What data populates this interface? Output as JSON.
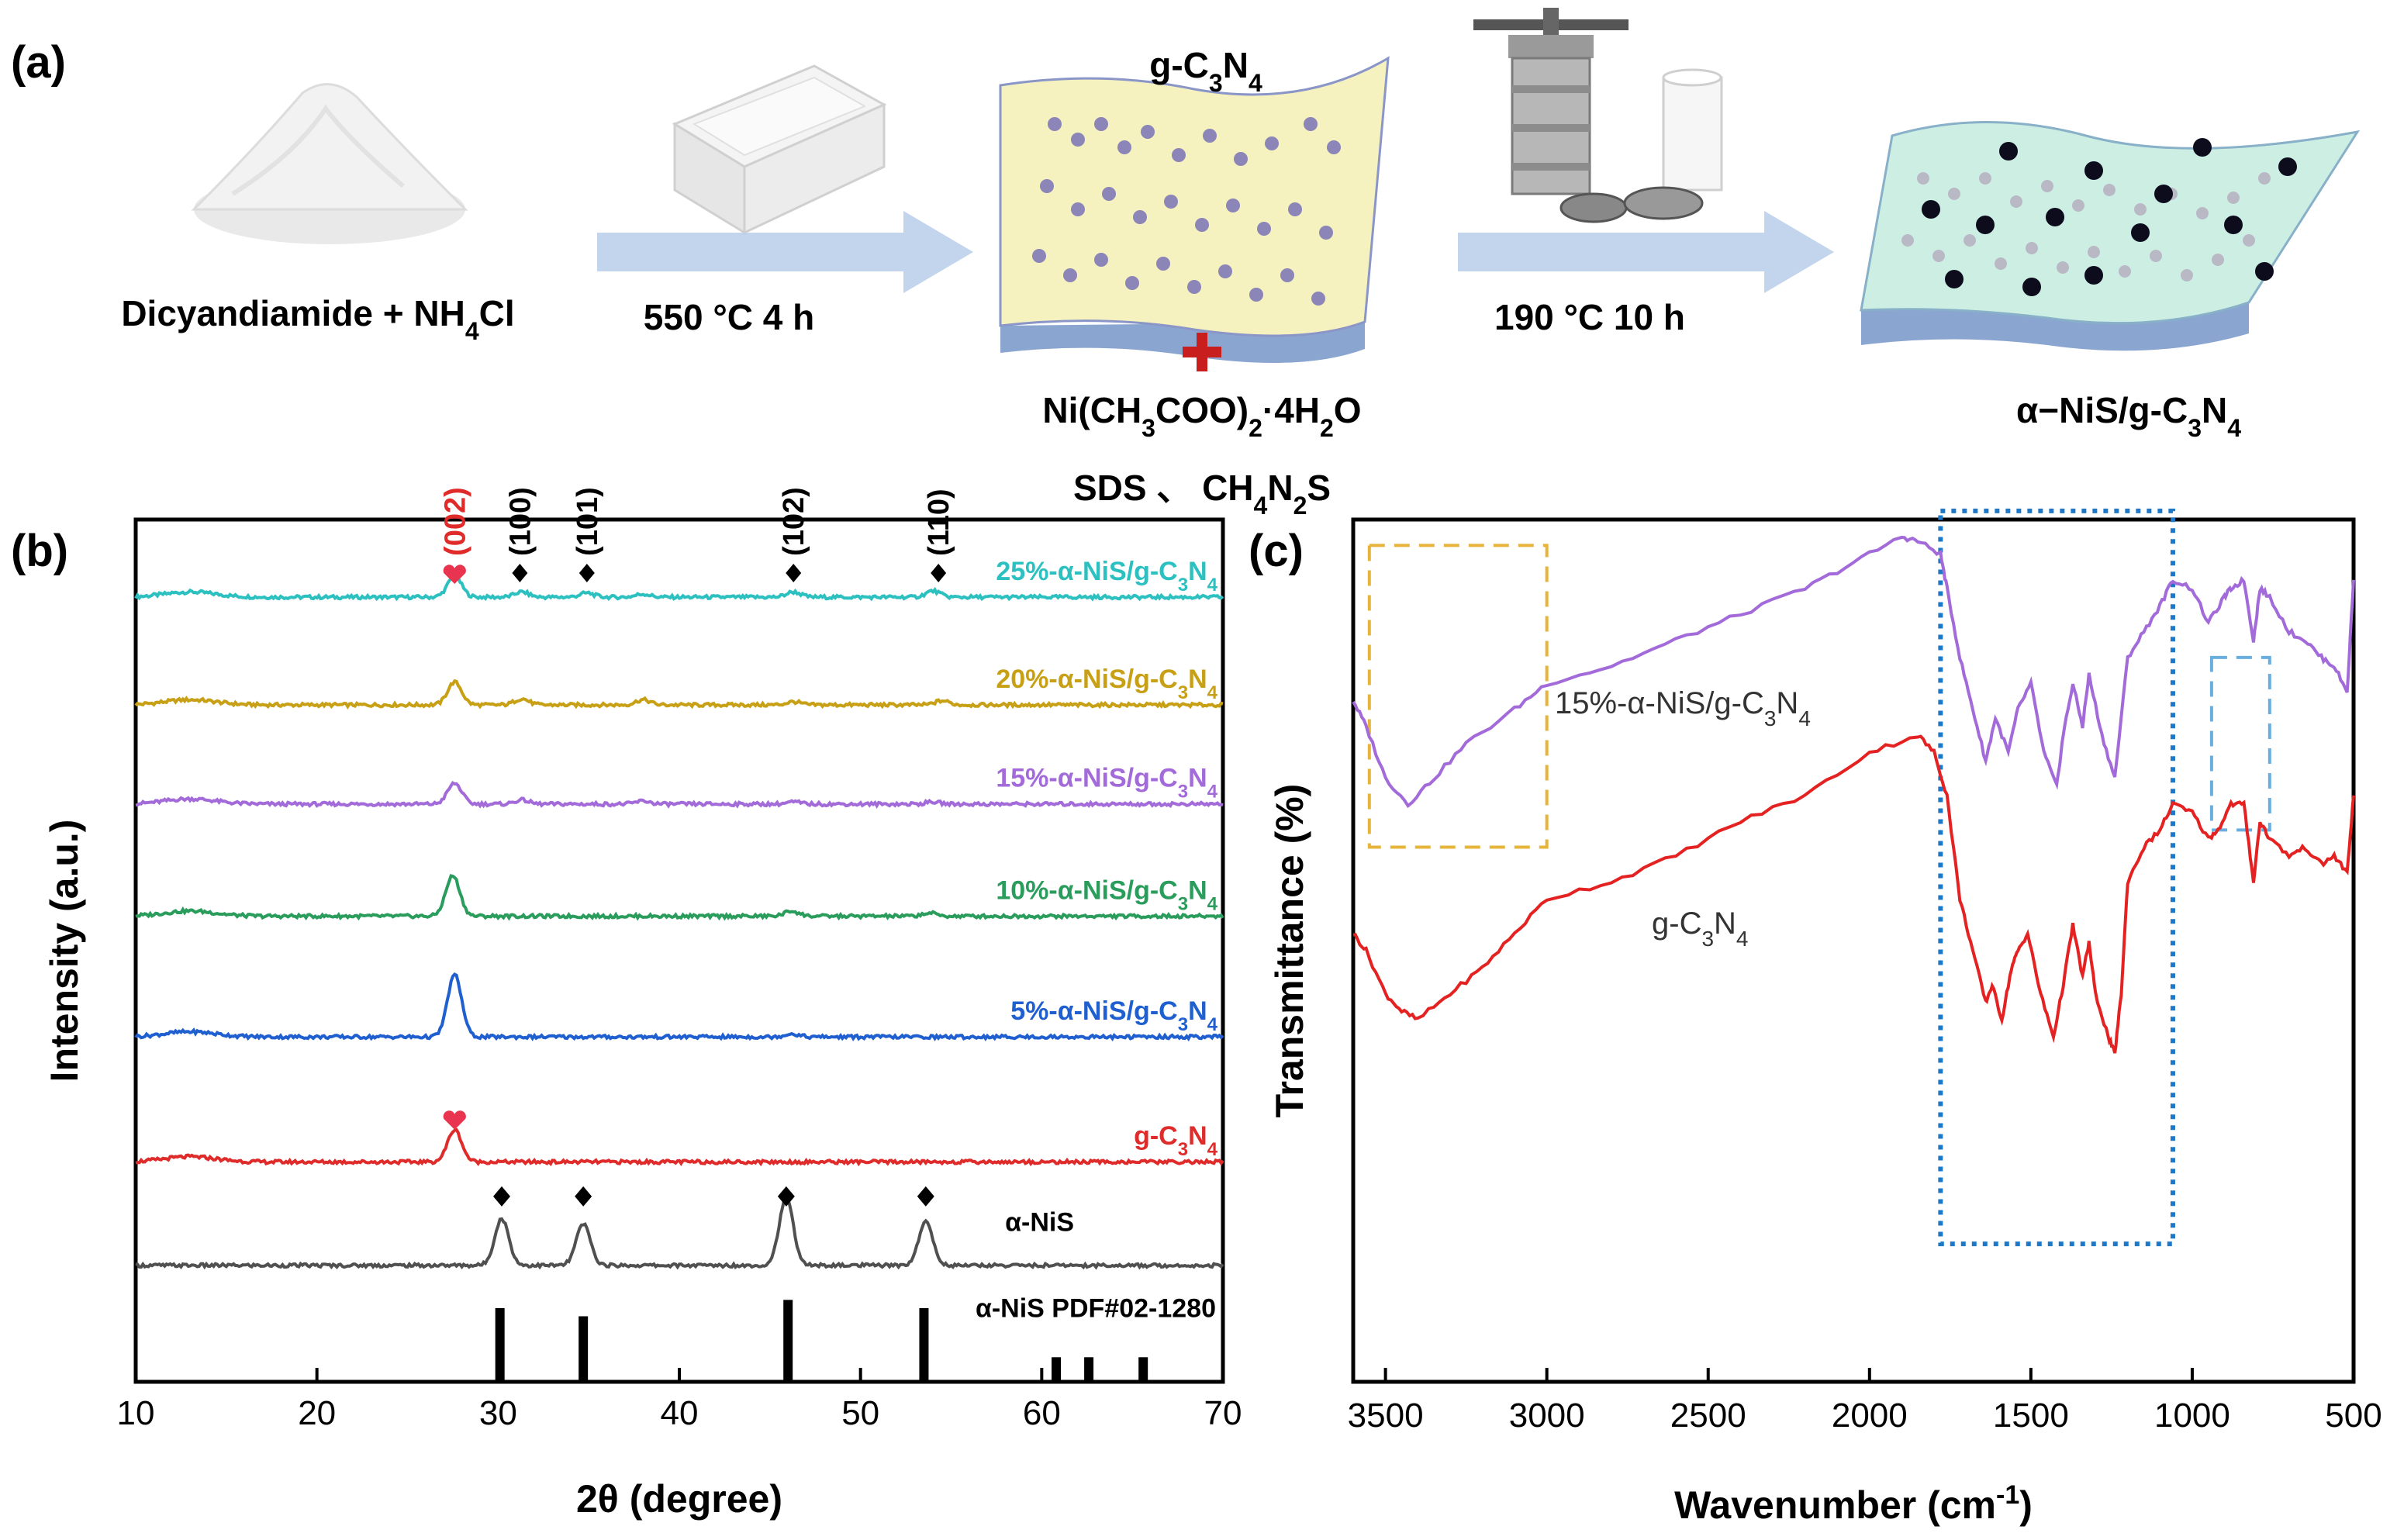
{
  "panel_a": {
    "label": "(a)",
    "step1_text": "Dicyandiamide + NH",
    "step1_sub": "4",
    "step1_tail": "Cl",
    "arrow1_label": "550 °C  4 h",
    "sheet1_title": "g-C",
    "sheet1_sub1": "3",
    "sheet1_mid": "N",
    "sheet1_sub2": "4",
    "reagent1_pre": "Ni(CH",
    "reagent1_sub1": "3",
    "reagent1_mid": "COO)",
    "reagent1_sub2": "2",
    "reagent1_mid2": "·4H",
    "reagent1_sub3": "2",
    "reagent1_tail": "O",
    "reagent2_pre": "SDS 、 CH",
    "reagent2_sub1": "4",
    "reagent2_mid": "N",
    "reagent2_sub2": "2",
    "reagent2_tail": "S",
    "arrow2_label": "190 °C  10 h",
    "product_pre": "α−NiS/g-C",
    "product_sub1": "3",
    "product_mid": "N",
    "product_sub2": "4",
    "colors": {
      "arrow": "#b9cdea",
      "sheet1": "#f6f2c0",
      "sheet2": "#cdeee3",
      "plus": "#c81e1e"
    }
  },
  "chart_data": [
    {
      "type": "line",
      "panel": "(b)",
      "title": "",
      "xlabel": "2θ (degree)",
      "ylabel": "Intensity (a.u.)",
      "xlim": [
        10,
        70
      ],
      "xticks": [
        10,
        20,
        30,
        40,
        50,
        60,
        70
      ],
      "yticks": [],
      "grid": false,
      "series": [
        {
          "name": "25%-α-NiS/g-C3N4",
          "label_pre": "25%-α-NiS/g-C",
          "color": "#2cc0c0",
          "baseline": 0.91,
          "peaks": [
            [
              27.6,
              0.2
            ],
            [
              31.3,
              0.05
            ],
            [
              34.9,
              0.04
            ],
            [
              38.0,
              0.03
            ],
            [
              46.3,
              0.05
            ],
            [
              54.0,
              0.06
            ]
          ]
        },
        {
          "name": "20%-α-NiS/g-C3N4",
          "label_pre": "20%-α-NiS/g-C",
          "color": "#c8a016",
          "baseline": 0.785,
          "peaks": [
            [
              27.6,
              0.22
            ],
            [
              31.3,
              0.06
            ],
            [
              38.0,
              0.05
            ],
            [
              46.3,
              0.03
            ],
            [
              54.5,
              0.04
            ]
          ]
        },
        {
          "name": "15%-α-NiS/g-C3N4",
          "label_pre": "15%-α-NiS/g-C",
          "color": "#a36ad9",
          "baseline": 0.67,
          "peaks": [
            [
              27.6,
              0.2
            ],
            [
              31.3,
              0.04
            ],
            [
              38.0,
              0.03
            ],
            [
              46.3,
              0.02
            ],
            [
              54.0,
              0.02
            ]
          ]
        },
        {
          "name": "10%-α-NiS/g-C3N4",
          "label_pre": "10%-α-NiS/g-C",
          "color": "#2a9d5c",
          "baseline": 0.54,
          "peaks": [
            [
              27.5,
              0.39
            ],
            [
              46.2,
              0.05
            ],
            [
              53.8,
              0.03
            ]
          ]
        },
        {
          "name": "5%-α-NiS/g-C3N4",
          "label_pre": "5%-α-NiS/g-C",
          "color": "#1f5fd0",
          "baseline": 0.4,
          "peaks": [
            [
              27.6,
              0.6
            ],
            [
              46.2,
              0.03
            ]
          ]
        },
        {
          "name": "g-C3N4",
          "label_pre": "g-C",
          "color": "#e02b2b",
          "baseline": 0.255,
          "peaks": [
            [
              27.6,
              0.31
            ]
          ]
        },
        {
          "name": "α-NiS",
          "label_pre": "α-NiS",
          "color": "#505050",
          "baseline": 0.135,
          "peaks": [
            [
              30.2,
              0.45
            ],
            [
              34.7,
              0.4
            ],
            [
              45.9,
              0.65
            ],
            [
              53.6,
              0.42
            ]
          ]
        }
      ],
      "reference": {
        "name": "α-NiS PDF#02-1280",
        "positions": [
          30.1,
          34.7,
          46.0,
          53.5,
          60.8,
          62.6,
          65.6
        ],
        "intensities": [
          0.9,
          0.8,
          1.0,
          0.9,
          0.3,
          0.3,
          0.3
        ]
      },
      "hkl_labels": [
        {
          "text": "(002)",
          "x": 27.6,
          "color": "#e02b2b",
          "marker": "heart"
        },
        {
          "text": "(100)",
          "x": 31.2,
          "color": "#000000",
          "marker": "diamond"
        },
        {
          "text": "(101)",
          "x": 34.9,
          "color": "#000000",
          "marker": "diamond"
        },
        {
          "text": "(102)",
          "x": 46.3,
          "color": "#000000",
          "marker": "diamond"
        },
        {
          "text": "(110)",
          "x": 54.3,
          "color": "#000000",
          "marker": "diamond"
        }
      ],
      "nis_diamonds": [
        30.2,
        34.7,
        45.9,
        53.6
      ]
    },
    {
      "type": "line",
      "panel": "(c)",
      "title": "",
      "xlabel": "Wavenumber (cm",
      "xlabel_sup": "-1",
      "xlabel_tail": ")",
      "ylabel": "Transmittance (%)",
      "xlim": [
        3600,
        500
      ],
      "xticks": [
        3500,
        3000,
        2500,
        2000,
        1500,
        1000,
        500
      ],
      "yticks": [],
      "grid": false,
      "series": [
        {
          "name": "15%-α-NiS/g-C3N4",
          "label_pre": "15%-α-NiS/g-C",
          "color": "#a36ad9",
          "points": [
            [
              3600,
              0.79
            ],
            [
              3560,
              0.76
            ],
            [
              3500,
              0.7
            ],
            [
              3430,
              0.67
            ],
            [
              3350,
              0.7
            ],
            [
              3250,
              0.74
            ],
            [
              3100,
              0.78
            ],
            [
              3000,
              0.81
            ],
            [
              2800,
              0.83
            ],
            [
              2600,
              0.86
            ],
            [
              2400,
              0.89
            ],
            [
              2200,
              0.92
            ],
            [
              2050,
              0.95
            ],
            [
              1900,
              0.98
            ],
            [
              1850,
              0.975
            ],
            [
              1780,
              0.96
            ],
            [
              1760,
              0.92
            ],
            [
              1720,
              0.84
            ],
            [
              1680,
              0.78
            ],
            [
              1640,
              0.72
            ],
            [
              1610,
              0.77
            ],
            [
              1570,
              0.73
            ],
            [
              1540,
              0.78
            ],
            [
              1500,
              0.81
            ],
            [
              1460,
              0.73
            ],
            [
              1420,
              0.69
            ],
            [
              1400,
              0.75
            ],
            [
              1370,
              0.81
            ],
            [
              1340,
              0.76
            ],
            [
              1320,
              0.82
            ],
            [
              1280,
              0.75
            ],
            [
              1240,
              0.7
            ],
            [
              1200,
              0.84
            ],
            [
              1150,
              0.87
            ],
            [
              1100,
              0.9
            ],
            [
              1060,
              0.93
            ],
            [
              1000,
              0.92
            ],
            [
              950,
              0.88
            ],
            [
              900,
              0.91
            ],
            [
              880,
              0.92
            ],
            [
              840,
              0.93
            ],
            [
              810,
              0.86
            ],
            [
              790,
              0.92
            ],
            [
              760,
              0.91
            ],
            [
              700,
              0.87
            ],
            [
              650,
              0.86
            ],
            [
              600,
              0.84
            ],
            [
              560,
              0.83
            ],
            [
              520,
              0.8
            ],
            [
              500,
              0.93
            ]
          ]
        },
        {
          "name": "g-C3N4",
          "label_pre": "g-C",
          "color": "#e52222",
          "points": [
            [
              3600,
              0.52
            ],
            [
              3560,
              0.5
            ],
            [
              3500,
              0.45
            ],
            [
              3450,
              0.43
            ],
            [
              3400,
              0.42
            ],
            [
              3300,
              0.45
            ],
            [
              3200,
              0.48
            ],
            [
              3100,
              0.52
            ],
            [
              3000,
              0.56
            ],
            [
              2800,
              0.58
            ],
            [
              2600,
              0.61
            ],
            [
              2400,
              0.65
            ],
            [
              2200,
              0.68
            ],
            [
              2000,
              0.73
            ],
            [
              1850,
              0.75
            ],
            [
              1800,
              0.73
            ],
            [
              1760,
              0.68
            ],
            [
              1720,
              0.56
            ],
            [
              1680,
              0.5
            ],
            [
              1640,
              0.44
            ],
            [
              1620,
              0.46
            ],
            [
              1590,
              0.42
            ],
            [
              1560,
              0.48
            ],
            [
              1540,
              0.5
            ],
            [
              1510,
              0.52
            ],
            [
              1470,
              0.45
            ],
            [
              1430,
              0.4
            ],
            [
              1400,
              0.46
            ],
            [
              1370,
              0.53
            ],
            [
              1340,
              0.47
            ],
            [
              1320,
              0.51
            ],
            [
              1300,
              0.45
            ],
            [
              1260,
              0.4
            ],
            [
              1240,
              0.38
            ],
            [
              1220,
              0.45
            ],
            [
              1200,
              0.58
            ],
            [
              1150,
              0.62
            ],
            [
              1100,
              0.64
            ],
            [
              1060,
              0.67
            ],
            [
              1000,
              0.66
            ],
            [
              950,
              0.63
            ],
            [
              920,
              0.64
            ],
            [
              880,
              0.67
            ],
            [
              840,
              0.67
            ],
            [
              810,
              0.58
            ],
            [
              790,
              0.65
            ],
            [
              760,
              0.63
            ],
            [
              700,
              0.61
            ],
            [
              650,
              0.62
            ],
            [
              600,
              0.6
            ],
            [
              560,
              0.61
            ],
            [
              520,
              0.59
            ],
            [
              500,
              0.68
            ]
          ]
        }
      ],
      "highlight_boxes": [
        {
          "color": "#e6b43a",
          "x_from": 3550,
          "x_to": 3000,
          "style": "dashed"
        },
        {
          "color": "#1e78c8",
          "x_from": 1780,
          "x_to": 1060,
          "style": "dotted"
        },
        {
          "color": "#6aaee0",
          "x_from": 940,
          "x_to": 760,
          "style": "dashed"
        }
      ],
      "series_label_sub1": "3",
      "series_label_mid": "N",
      "series_label_sub2": "4"
    }
  ]
}
